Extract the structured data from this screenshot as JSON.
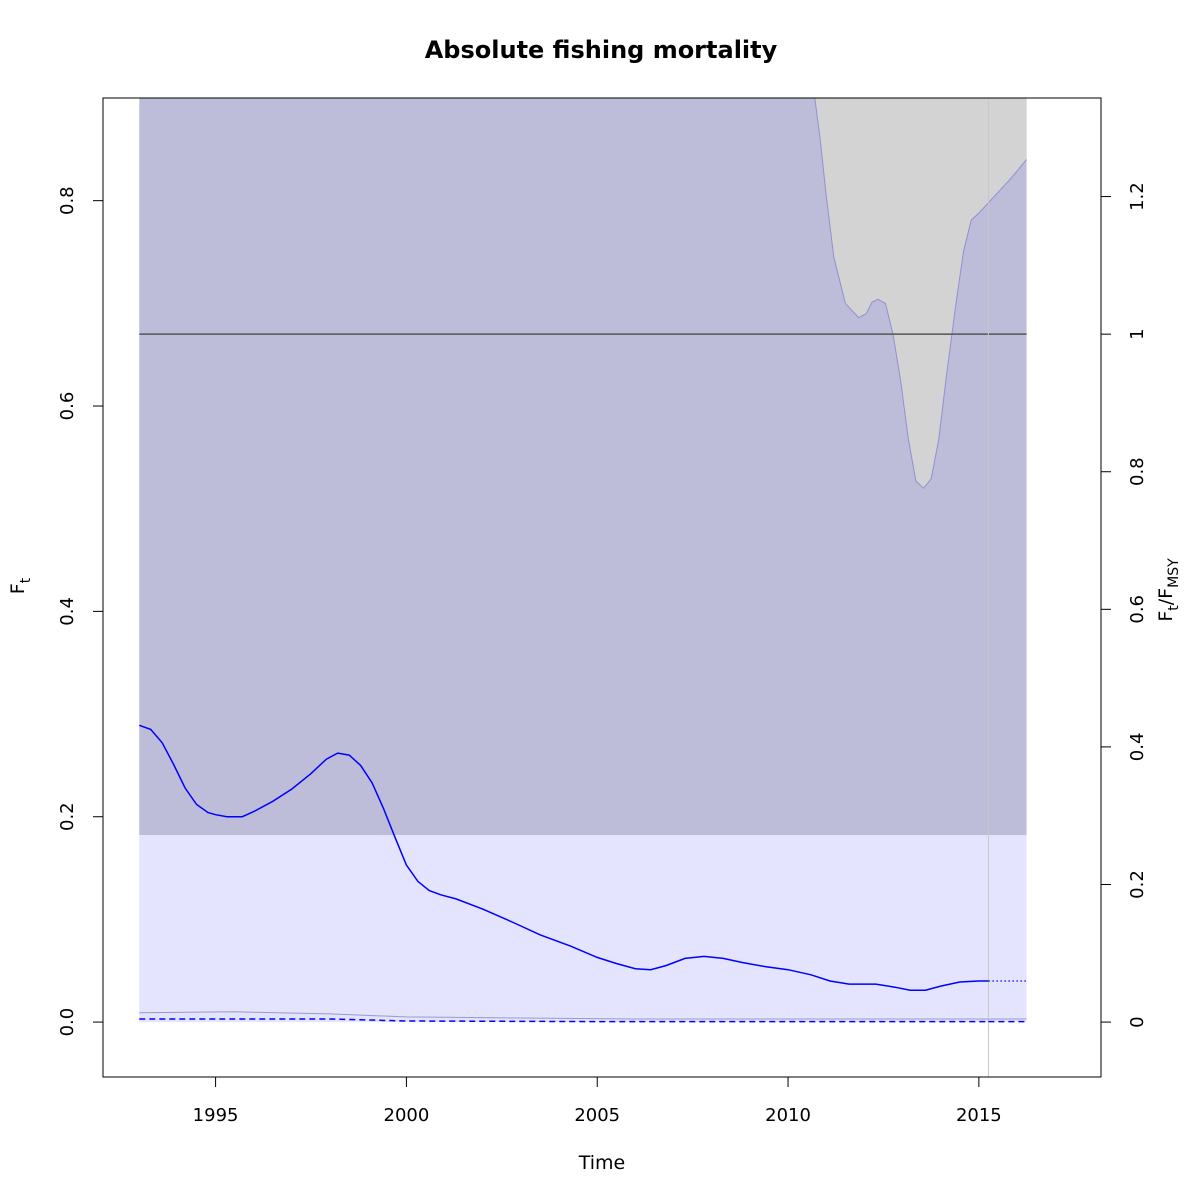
{
  "chart_data": {
    "type": "line",
    "title": "Absolute fishing mortality",
    "xlabel": "Time",
    "ylabel": {
      "main": "F",
      "sub": "t"
    },
    "ylabel_right": {
      "main": "F",
      "sub1": "t",
      "slash": "/F",
      "sub2": "MSY"
    },
    "xlim": [
      1992.05,
      2018.2
    ],
    "ylim": [
      -0.0535,
      0.9
    ],
    "x_ticks": [
      1995,
      2000,
      2005,
      2010,
      2015
    ],
    "x_tick_labels": [
      "1995",
      "2000",
      "2005",
      "2010",
      "2015"
    ],
    "y_ticks": [
      0.0,
      0.2,
      0.4,
      0.6,
      0.8
    ],
    "y_tick_labels": [
      "0.0",
      "0.2",
      "0.4",
      "0.6",
      "0.8"
    ],
    "right_ticks_fraction": [
      0,
      0.2,
      0.4,
      0.6,
      0.8,
      1,
      1.2
    ],
    "right_tick_labels": [
      "0",
      "0.2",
      "0.4",
      "0.6",
      "0.8",
      "1",
      "1.2"
    ],
    "Fmsy": 0.67,
    "Fmsy_band": {
      "lower": 0.182,
      "upper_clip": 0.9
    },
    "band_x": [
      1993.0,
      2016.25
    ],
    "band_colors": {
      "outer": "#bdbdd9",
      "inner": "#e4e4fe"
    },
    "ci_upper_overlay": {
      "color": "#d3d3d3",
      "x": [
        2010.7,
        2010.85,
        2011.0,
        2011.2,
        2011.5,
        2011.85,
        2012.05,
        2012.2,
        2012.35,
        2012.55,
        2012.75,
        2012.95,
        2013.15,
        2013.35,
        2013.55,
        2013.75,
        2013.95,
        2014.15,
        2014.4,
        2014.6,
        2014.8,
        2015.0,
        2015.3,
        2015.8,
        2016.25
      ],
      "y": [
        0.9,
        0.857,
        0.805,
        0.745,
        0.7,
        0.686,
        0.69,
        0.701,
        0.704,
        0.7,
        0.67,
        0.625,
        0.568,
        0.527,
        0.52,
        0.529,
        0.568,
        0.629,
        0.7,
        0.751,
        0.781,
        0.788,
        0.8,
        0.82,
        0.84
      ]
    },
    "series": [
      {
        "name": "F_t",
        "style": "solid",
        "color": "#0000ff",
        "x": [
          1993.0,
          1993.3,
          1993.6,
          1993.9,
          1994.2,
          1994.5,
          1994.8,
          1995.0,
          1995.3,
          1995.7,
          1996.0,
          1996.5,
          1997.0,
          1997.5,
          1997.9,
          1998.2,
          1998.5,
          1998.8,
          1999.1,
          1999.4,
          1999.7,
          2000.0,
          2000.3,
          2000.6,
          2000.9,
          2001.3,
          2002.0,
          2002.8,
          2003.5,
          2004.3,
          2005.0,
          2005.5,
          2006.0,
          2006.4,
          2006.8,
          2007.3,
          2007.8,
          2008.3,
          2008.8,
          2009.4,
          2010.0,
          2010.6,
          2011.1,
          2011.6,
          2012.3,
          2012.8,
          2013.2,
          2013.6,
          2014.0,
          2014.5,
          2015.0,
          2015.25
        ],
        "y": [
          0.289,
          0.285,
          0.272,
          0.251,
          0.228,
          0.212,
          0.204,
          0.202,
          0.2,
          0.2,
          0.205,
          0.215,
          0.227,
          0.242,
          0.256,
          0.262,
          0.26,
          0.25,
          0.233,
          0.208,
          0.18,
          0.153,
          0.137,
          0.128,
          0.124,
          0.12,
          0.11,
          0.097,
          0.085,
          0.074,
          0.063,
          0.057,
          0.052,
          0.051,
          0.055,
          0.062,
          0.064,
          0.062,
          0.058,
          0.054,
          0.051,
          0.046,
          0.04,
          0.037,
          0.037,
          0.034,
          0.031,
          0.031,
          0.035,
          0.039,
          0.04,
          0.04
        ]
      },
      {
        "name": "F_t forecast",
        "style": "dotted",
        "color": "#0000ff",
        "x": [
          2015.25,
          2016.25
        ],
        "y": [
          0.04,
          0.04
        ]
      },
      {
        "name": "F_t lower CI",
        "style": "dashed",
        "color": "#0000ff",
        "x": [
          1993.0,
          1995.5,
          1998.0,
          2000.0,
          2005.0,
          2010.0,
          2015.25
        ],
        "y": [
          0.003,
          0.003,
          0.003,
          0.001,
          0.0005,
          0.0005,
          0.0005
        ]
      },
      {
        "name": "F_t lower CI forecast",
        "style": "dashed",
        "color": "#0000ff",
        "x": [
          2015.25,
          2016.25
        ],
        "y": [
          0.0005,
          0.0005
        ]
      },
      {
        "name": "F_t upper CI (lower bound of band)",
        "style": "solid-faint",
        "color": "#9a9ac8",
        "x": [
          1993.0,
          1995.5,
          1998.0,
          2000.0,
          2003.0,
          2006.0,
          2010.0,
          2016.25
        ],
        "y": [
          0.009,
          0.01,
          0.008,
          0.005,
          0.004,
          0.003,
          0.003,
          0.003
        ]
      }
    ],
    "vline": {
      "x": 2015.25,
      "color": "#c8c8c8"
    },
    "grid": false,
    "legend": "none"
  }
}
